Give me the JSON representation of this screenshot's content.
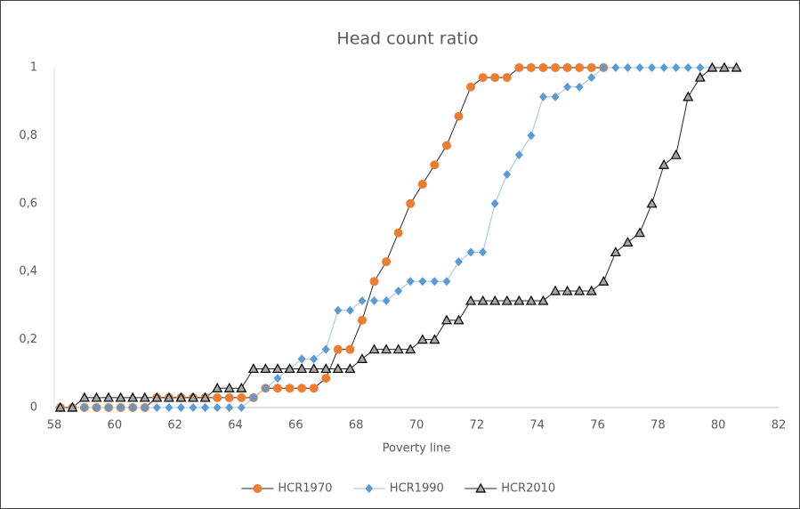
{
  "chart_data": {
    "type": "line",
    "title": "Head count ratio",
    "x_label": "Poverty line",
    "x": [
      58.2,
      58.6,
      59.0,
      59.4,
      59.8,
      60.2,
      60.6,
      61.0,
      61.4,
      61.8,
      62.2,
      62.6,
      63.0,
      63.4,
      63.8,
      64.2,
      64.6,
      65.0,
      65.4,
      65.8,
      66.2,
      66.6,
      67.0,
      67.4,
      67.8,
      68.2,
      68.6,
      69.0,
      69.4,
      69.8,
      70.2,
      70.6,
      71.0,
      71.4,
      71.8,
      72.2,
      72.6,
      73.0,
      73.4,
      73.8,
      74.2,
      74.6,
      75.0,
      75.4,
      75.8,
      76.2,
      76.6,
      77.0,
      77.4,
      77.8,
      78.2,
      78.6,
      79.0,
      79.4,
      79.8,
      80.2,
      80.6
    ],
    "series": [
      {
        "name": "HCR1970",
        "color": "#ed7d31",
        "line_color": "#262626",
        "marker": "circle",
        "values": [
          0,
          0,
          0,
          0,
          0,
          0,
          0,
          0,
          0.029,
          0.029,
          0.029,
          0.029,
          0.029,
          0.029,
          0.029,
          0.029,
          0.029,
          0.057,
          0.057,
          0.057,
          0.057,
          0.057,
          0.086,
          0.171,
          0.171,
          0.257,
          0.371,
          0.429,
          0.514,
          0.6,
          0.657,
          0.714,
          0.771,
          0.857,
          0.943,
          0.971,
          0.971,
          0.971,
          1,
          1,
          1,
          1,
          1,
          1,
          1,
          1,
          null,
          null,
          null,
          null,
          null,
          null,
          null,
          null,
          null,
          null,
          null
        ]
      },
      {
        "name": "HCR1990",
        "color": "#5b9bd5",
        "line_color": "#9dc3e6",
        "marker": "diamond",
        "values": [
          0,
          0,
          0,
          0,
          0,
          0,
          0,
          0,
          0,
          0,
          0,
          0,
          0,
          0,
          0,
          0,
          0.029,
          0.057,
          0.086,
          0.114,
          0.143,
          0.143,
          0.171,
          0.286,
          0.286,
          0.314,
          0.314,
          0.314,
          0.343,
          0.371,
          0.371,
          0.371,
          0.371,
          0.429,
          0.457,
          0.457,
          0.6,
          0.686,
          0.743,
          0.8,
          0.914,
          0.914,
          0.943,
          0.943,
          0.971,
          1,
          1,
          1,
          1,
          1,
          1,
          1,
          1,
          1,
          1,
          1,
          null
        ]
      },
      {
        "name": "HCR2010",
        "color": "#a6a6a6",
        "line_color": "#262626",
        "marker": "triangle",
        "values": [
          0,
          0,
          0.029,
          0.029,
          0.029,
          0.029,
          0.029,
          0.029,
          0.029,
          0.029,
          0.029,
          0.029,
          0.029,
          0.057,
          0.057,
          0.057,
          0.114,
          0.114,
          0.114,
          0.114,
          0.114,
          0.114,
          0.114,
          0.114,
          0.114,
          0.143,
          0.171,
          0.171,
          0.171,
          0.171,
          0.2,
          0.2,
          0.257,
          0.257,
          0.314,
          0.314,
          0.314,
          0.314,
          0.314,
          0.314,
          0.314,
          0.343,
          0.343,
          0.343,
          0.343,
          0.371,
          0.457,
          0.486,
          0.514,
          0.6,
          0.714,
          0.743,
          0.914,
          0.971,
          1,
          1,
          1
        ]
      }
    ],
    "xlim": [
      58,
      82
    ],
    "xticks": [
      58,
      60,
      62,
      64,
      66,
      68,
      70,
      72,
      74,
      76,
      78,
      80,
      82
    ],
    "ylim": [
      0,
      1
    ],
    "yticks": [
      0,
      {
        "value": 0.2,
        "label": "0,2"
      },
      {
        "value": 0.4,
        "label": "0,4"
      },
      {
        "value": 0.6,
        "label": "0,6"
      },
      {
        "value": 0.8,
        "label": "0,8"
      },
      1
    ],
    "grid": false,
    "legend": "bottom"
  }
}
